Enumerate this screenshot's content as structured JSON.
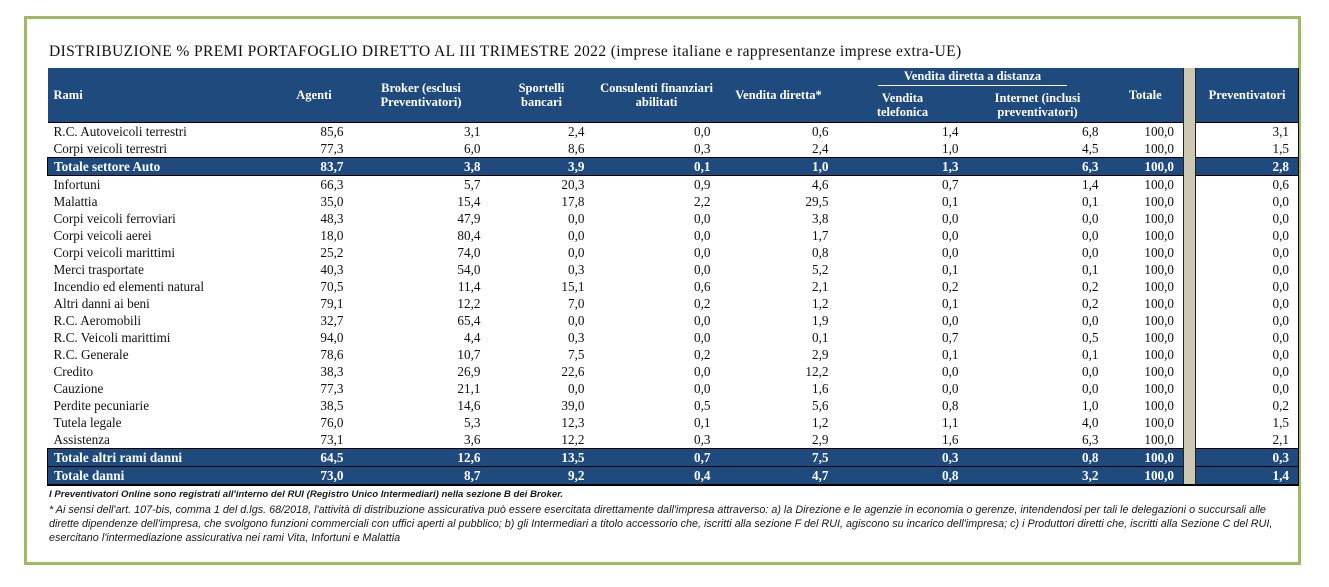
{
  "title": "DISTRIBUZIONE % PREMI PORTAFOGLIO DIRETTO AL III TRIMESTRE 2022 (imprese italiane e rappresentanze imprese extra-UE)",
  "colors": {
    "header_bg": "#1F4A7D",
    "total_row_bg": "#1F4A7D",
    "frame_border": "#9EBB62",
    "separator_strip": "#CDC8B3",
    "header_text": "#FFFFFF"
  },
  "table": {
    "group_header": "Vendita diretta a distanza",
    "columns": [
      "Rami",
      "Agenti",
      "Broker (esclusi Preventivatori)",
      "Sportelli bancari",
      "Consulenti finanziari abilitati",
      "Vendita diretta*",
      "Vendita telefonica",
      "Internet (inclusi preventivatori)",
      "Totale",
      "Preventivatori"
    ],
    "rows": [
      {
        "label": "R.C. Autoveicoli terrestri",
        "values": [
          "85,6",
          "3,1",
          "2,4",
          "0,0",
          "0,6",
          "1,4",
          "6,8",
          "100,0",
          "3,1"
        ],
        "total": false
      },
      {
        "label": "Corpi veicoli terrestri",
        "values": [
          "77,3",
          "6,0",
          "8,6",
          "0,3",
          "2,4",
          "1,0",
          "4,5",
          "100,0",
          "1,5"
        ],
        "total": false
      },
      {
        "label": "Totale settore Auto",
        "values": [
          "83,7",
          "3,8",
          "3,9",
          "0,1",
          "1,0",
          "1,3",
          "6,3",
          "100,0",
          "2,8"
        ],
        "total": true
      },
      {
        "label": "Infortuni",
        "values": [
          "66,3",
          "5,7",
          "20,3",
          "0,9",
          "4,6",
          "0,7",
          "1,4",
          "100,0",
          "0,6"
        ],
        "total": false
      },
      {
        "label": "Malattia",
        "values": [
          "35,0",
          "15,4",
          "17,8",
          "2,2",
          "29,5",
          "0,1",
          "0,1",
          "100,0",
          "0,0"
        ],
        "total": false
      },
      {
        "label": "Corpi veicoli ferroviari",
        "values": [
          "48,3",
          "47,9",
          "0,0",
          "0,0",
          "3,8",
          "0,0",
          "0,0",
          "100,0",
          "0,0"
        ],
        "total": false
      },
      {
        "label": "Corpi veicoli aerei",
        "values": [
          "18,0",
          "80,4",
          "0,0",
          "0,0",
          "1,7",
          "0,0",
          "0,0",
          "100,0",
          "0,0"
        ],
        "total": false
      },
      {
        "label": "Corpi veicoli marittimi",
        "values": [
          "25,2",
          "74,0",
          "0,0",
          "0,0",
          "0,8",
          "0,0",
          "0,0",
          "100,0",
          "0,0"
        ],
        "total": false
      },
      {
        "label": "Merci trasportate",
        "values": [
          "40,3",
          "54,0",
          "0,3",
          "0,0",
          "5,2",
          "0,1",
          "0,1",
          "100,0",
          "0,0"
        ],
        "total": false
      },
      {
        "label": "Incendio ed elementi natural",
        "values": [
          "70,5",
          "11,4",
          "15,1",
          "0,6",
          "2,1",
          "0,2",
          "0,2",
          "100,0",
          "0,0"
        ],
        "total": false
      },
      {
        "label": "Altri danni ai beni",
        "values": [
          "79,1",
          "12,2",
          "7,0",
          "0,2",
          "1,2",
          "0,1",
          "0,2",
          "100,0",
          "0,0"
        ],
        "total": false
      },
      {
        "label": "R.C. Aeromobili",
        "values": [
          "32,7",
          "65,4",
          "0,0",
          "0,0",
          "1,9",
          "0,0",
          "0,0",
          "100,0",
          "0,0"
        ],
        "total": false
      },
      {
        "label": "R.C. Veicoli marittimi",
        "values": [
          "94,0",
          "4,4",
          "0,3",
          "0,0",
          "0,1",
          "0,7",
          "0,5",
          "100,0",
          "0,0"
        ],
        "total": false
      },
      {
        "label": "R.C. Generale",
        "values": [
          "78,6",
          "10,7",
          "7,5",
          "0,2",
          "2,9",
          "0,1",
          "0,1",
          "100,0",
          "0,0"
        ],
        "total": false
      },
      {
        "label": "Credito",
        "values": [
          "38,3",
          "26,9",
          "22,6",
          "0,0",
          "12,2",
          "0,0",
          "0,0",
          "100,0",
          "0,0"
        ],
        "total": false
      },
      {
        "label": "Cauzione",
        "values": [
          "77,3",
          "21,1",
          "0,0",
          "0,0",
          "1,6",
          "0,0",
          "0,0",
          "100,0",
          "0,0"
        ],
        "total": false
      },
      {
        "label": "Perdite pecuniarie",
        "values": [
          "38,5",
          "14,6",
          "39,0",
          "0,5",
          "5,6",
          "0,8",
          "1,0",
          "100,0",
          "0,2"
        ],
        "total": false
      },
      {
        "label": "Tutela legale",
        "values": [
          "76,0",
          "5,3",
          "12,3",
          "0,1",
          "1,2",
          "1,1",
          "4,0",
          "100,0",
          "1,5"
        ],
        "total": false
      },
      {
        "label": "Assistenza",
        "values": [
          "73,1",
          "3,6",
          "12,2",
          "0,3",
          "2,9",
          "1,6",
          "6,3",
          "100,0",
          "2,1"
        ],
        "total": false
      },
      {
        "label": "Totale altri rami danni",
        "values": [
          "64,5",
          "12,6",
          "13,5",
          "0,7",
          "7,5",
          "0,3",
          "0,8",
          "100,0",
          "0,3"
        ],
        "total": true
      },
      {
        "label": "Totale danni",
        "values": [
          "73,0",
          "8,7",
          "9,2",
          "0,4",
          "4,7",
          "0,8",
          "3,2",
          "100,0",
          "1,4"
        ],
        "total": true
      }
    ]
  },
  "footnotes": {
    "note1": "I Preventivatori Online sono registrati all'interno del RUI (Registro Unico Intermediari) nella sezione B dei Broker.",
    "note2": "* Ai sensi dell'art. 107-bis, comma 1 del d.lgs. 68/2018, l'attività di distribuzione assicurativa può essere esercitata direttamente dall'impresa attraverso: a) la Direzione e le agenzie in economia o gerenze, intendendosi per tali le delegazioni o succursali alle dirette dipendenze dell'impresa, che svolgono funzioni commerciali con uffici aperti al pubblico; b) gli Intermediari a titolo accessorio che, iscritti alla sezione F del RUI, agiscono su incarico dell'impresa; c) i Produttori diretti che, iscritti alla Sezione C del RUI, esercitano l'intermediazione assicurativa nei rami Vita, Infortuni e Malattia"
  }
}
